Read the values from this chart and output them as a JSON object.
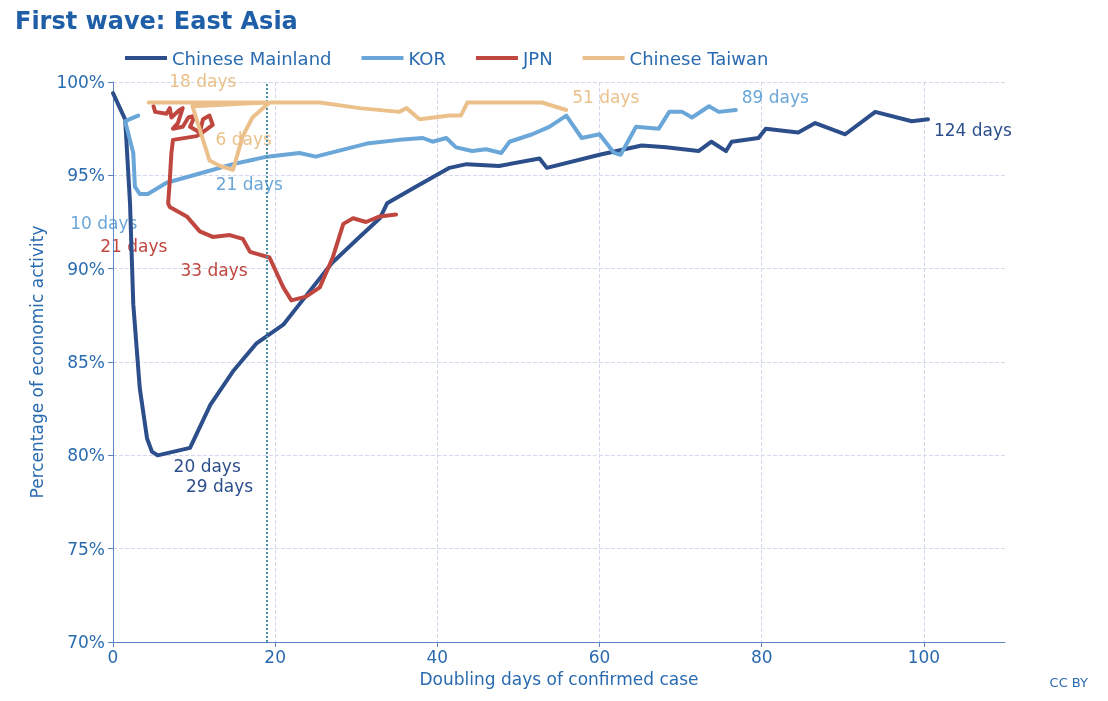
{
  "chart_data": {
    "type": "line",
    "title": "First wave: East Asia",
    "xlabel": "Doubling days of confirmed case",
    "ylabel": "Percentage of economic activity",
    "xlim": [
      0,
      110
    ],
    "xticks": [
      0,
      20,
      40,
      60,
      80,
      100
    ],
    "ylim": [
      70,
      100
    ],
    "yticks": [
      {
        "value": 70,
        "label": "70%"
      },
      {
        "value": 75,
        "label": "75%"
      },
      {
        "value": 80,
        "label": "80%"
      },
      {
        "value": 85,
        "label": "85%"
      },
      {
        "value": 90,
        "label": "90%"
      },
      {
        "value": 95,
        "label": "95%"
      },
      {
        "value": 100,
        "label": "100%"
      }
    ],
    "grid": true,
    "legend": "top",
    "line_style": "solid",
    "marker": "none",
    "ref_lines": [
      {
        "axis": "x",
        "value": 19,
        "line_style": "dotted",
        "color": "#4a8fa8"
      }
    ],
    "series": [
      {
        "name": "Chinese Mainland",
        "color": "#2c4f8c",
        "x": [
          0,
          1.5,
          2.1,
          2.5,
          3.3,
          4.2,
          4.8,
          5.5,
          9.5,
          12,
          14.8,
          17.7,
          21,
          23,
          27,
          30.4,
          32.9,
          33.8,
          37.4,
          41.5,
          43.6,
          47.6,
          52.6,
          53.5,
          60,
          65.2,
          68.2,
          72.2,
          73.8,
          75.6,
          76.3,
          79.6,
          80.5,
          84.5,
          86.6,
          90.3,
          94,
          98.5,
          100.5
        ],
        "values": [
          99.4,
          98.0,
          93.5,
          88.1,
          83.6,
          80.9,
          80.2,
          80.0,
          80.4,
          82.7,
          84.5,
          86.0,
          87.0,
          88.1,
          90.3,
          91.7,
          92.7,
          93.5,
          94.4,
          95.4,
          95.6,
          95.5,
          95.9,
          95.4,
          96.1,
          96.6,
          96.5,
          96.3,
          96.8,
          96.3,
          96.8,
          97.0,
          97.5,
          97.3,
          97.8,
          97.2,
          98.4,
          97.9,
          98.0
        ]
      },
      {
        "name": "KOR",
        "color": "#6aa6d8",
        "x": [
          3.1,
          1.5,
          2.5,
          2.7,
          3.3,
          4.3,
          6.6,
          10.7,
          14.8,
          19,
          23,
          25,
          31.3,
          35.3,
          38.2,
          39.4,
          41.1,
          42.3,
          44.3,
          46,
          47.9,
          48.9,
          51.7,
          53.8,
          55.9,
          57.8,
          60,
          61.8,
          62.6,
          64.5,
          67.3,
          68.6,
          70.2,
          71.4,
          73.5,
          74.7,
          76.8
        ],
        "values": [
          98.2,
          97.9,
          96.2,
          94.4,
          94.0,
          94.0,
          94.6,
          95.1,
          95.6,
          96.0,
          96.2,
          96.0,
          96.7,
          96.9,
          97.0,
          96.8,
          97.0,
          96.5,
          96.3,
          96.4,
          96.2,
          96.8,
          97.2,
          97.6,
          98.2,
          97.0,
          97.2,
          96.2,
          96.1,
          97.6,
          97.5,
          98.4,
          98.4,
          98.1,
          98.7,
          98.4,
          98.5
        ]
      },
      {
        "name": "JPN",
        "color": "#c0473f",
        "x": [
          5.0,
          5.2,
          6.6,
          7.0,
          7.2,
          8.2,
          8.6,
          8.0,
          7.4,
          8.6,
          9.3,
          10.1,
          9.5,
          10.7,
          11.1,
          11.9,
          12.3,
          10.7,
          10.3,
          7.4,
          7.2,
          7.0,
          6.8,
          7.0,
          9.1,
          10.7,
          12.3,
          14.4,
          16.0,
          16.9,
          19.3,
          21.0,
          22.0,
          23.8,
          25.5,
          27.1,
          28.4,
          29.6,
          31.2,
          32.9,
          34.9
        ],
        "values": [
          98.7,
          98.4,
          98.3,
          98.6,
          98.1,
          98.5,
          98.6,
          97.8,
          97.5,
          97.6,
          98.1,
          98.2,
          97.6,
          97.3,
          98.0,
          98.2,
          97.7,
          97.2,
          97.1,
          96.9,
          96.2,
          94.7,
          93.5,
          93.3,
          92.8,
          92.0,
          91.7,
          91.8,
          91.6,
          90.9,
          90.6,
          89.0,
          88.3,
          88.5,
          89.0,
          90.6,
          92.4,
          92.7,
          92.5,
          92.8,
          92.9
        ]
      },
      {
        "name": "Chinese Taiwan",
        "color": "#ebc08a",
        "x": [
          4.4,
          19,
          9.8,
          11.9,
          13.2,
          14.8,
          16.0,
          17.2,
          19.3,
          23,
          25.5,
          30.4,
          35.3,
          36.2,
          37.8,
          41.5,
          42.9,
          43.7,
          52.9,
          55.9
        ],
        "values": [
          98.9,
          98.9,
          98.7,
          95.8,
          95.5,
          95.3,
          97.1,
          98.1,
          98.9,
          98.9,
          98.9,
          98.6,
          98.4,
          98.6,
          98.0,
          98.2,
          98.2,
          98.9,
          98.9,
          98.5
        ]
      }
    ],
    "annotations": [
      {
        "text": "20 days",
        "x": 5.5,
        "y": 80.0
      },
      {
        "text": "29 days",
        "x": 9.5,
        "y": 80.4
      },
      {
        "text": "124 days",
        "x": 100.5,
        "y": 98.0
      },
      {
        "text": "10 days",
        "x": 3.3,
        "y": 94.0
      },
      {
        "text": "21 days",
        "x": 10.7,
        "y": 95.1
      },
      {
        "text": "89 days",
        "x": 76.8,
        "y": 98.5
      },
      {
        "text": "21 days",
        "x": 7.0,
        "y": 93.3
      },
      {
        "text": "33 days",
        "x": 16.9,
        "y": 90.9
      },
      {
        "text": "6 days",
        "x": 11.9,
        "y": 95.8
      },
      {
        "text": "18 days",
        "x": 15.5,
        "y": 98.9
      },
      {
        "text": "51 days",
        "x": 55.9,
        "y": 98.5
      },
      "CC BY"
    ]
  }
}
